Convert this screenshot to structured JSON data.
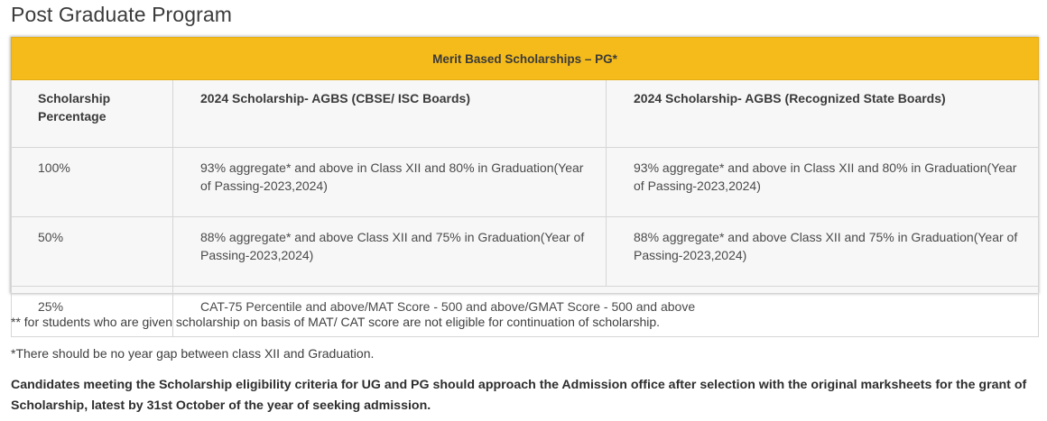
{
  "page": {
    "title": "Post Graduate Program"
  },
  "table": {
    "caption": "Merit Based Scholarships – PG*",
    "headers": [
      "Scholarship Percentage",
      "2024 Scholarship- AGBS (CBSE/ ISC Boards)",
      "2024 Scholarship- AGBS (Recognized State Boards)"
    ],
    "rows": [
      {
        "percentage": "100%",
        "cbse": "93% aggregate* and above in Class XII and 80% in Graduation(Year of Passing-2023,2024)",
        "state": "93% aggregate* and above in Class XII and 80% in Graduation(Year of Passing-2023,2024)"
      },
      {
        "percentage": "50%",
        "cbse": "88% aggregate* and above Class XII and 75% in Graduation(Year of Passing-2023,2024)",
        "state": "88% aggregate* and above Class XII and 75% in Graduation(Year of Passing-2023,2024)"
      },
      {
        "percentage": "25%",
        "combined": "CAT-75 Percentile and above/MAT Score - 500 and above/GMAT Score - 500 and above"
      }
    ]
  },
  "notes": {
    "note1": "** for students who are given scholarship on basis of MAT/ CAT score are not eligible for continuation of scholarship.",
    "note2": "*There should be no year gap between class XII and Graduation.",
    "bold_note": "Candidates meeting the Scholarship eligibility criteria for UG and PG should approach the Admission office after selection with the original marksheets for the grant of Scholarship, latest by 31st October of the year of seeking admission."
  },
  "colors": {
    "header_band": "#f5bb1a",
    "table_bg": "#f7f7f7",
    "border": "#d6d6d6"
  }
}
